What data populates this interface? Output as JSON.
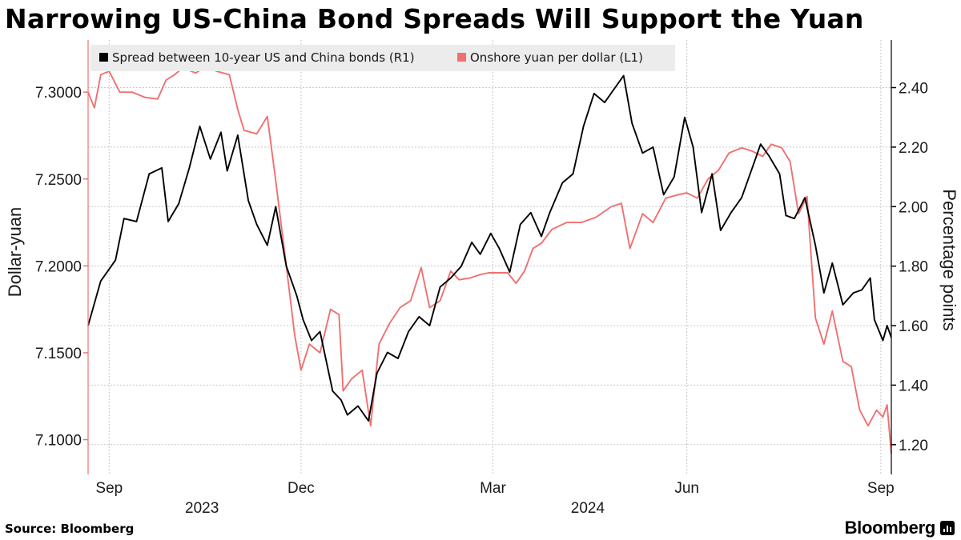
{
  "title": "Narrowing US-China Bond Spreads Will Support the Yuan",
  "source": "Source: Bloomberg",
  "brand": "Bloomberg",
  "brand_icon": "bloomberg-chart-icon",
  "chart_data": {
    "type": "line",
    "left_axis": {
      "label": "Dollar-yuan",
      "min": 7.08,
      "max": 7.33,
      "ticks": [
        "7.1000",
        "7.1500",
        "7.2000",
        "7.2500",
        "7.3000"
      ]
    },
    "right_axis": {
      "label": "Percentage points",
      "min": 1.1,
      "max": 2.56,
      "ticks": [
        "1.20",
        "1.40",
        "1.60",
        "1.80",
        "2.00",
        "2.20",
        "2.40"
      ]
    },
    "x_axis": {
      "start": "2023-08-22",
      "end": "2024-09-06",
      "month_ticks": [
        {
          "label": "Sep",
          "date": "2023-09-01"
        },
        {
          "label": "Dec",
          "date": "2023-12-01"
        },
        {
          "label": "Mar",
          "date": "2024-03-01"
        },
        {
          "label": "Jun",
          "date": "2024-06-01"
        },
        {
          "label": "Sep",
          "date": "2024-09-01"
        }
      ],
      "year_labels": [
        {
          "label": "2023",
          "date": "2023-10-15"
        },
        {
          "label": "2024",
          "date": "2024-04-15"
        }
      ]
    },
    "grid": true,
    "legend_position": "top-left",
    "series": [
      {
        "name": "Spread between 10-year US and China bonds (R1)",
        "axis": "right",
        "color": "#000000",
        "points": [
          [
            "2023-08-22",
            1.6
          ],
          [
            "2023-08-28",
            1.75
          ],
          [
            "2023-09-04",
            1.82
          ],
          [
            "2023-09-08",
            1.96
          ],
          [
            "2023-09-14",
            1.95
          ],
          [
            "2023-09-20",
            2.11
          ],
          [
            "2023-09-26",
            2.13
          ],
          [
            "2023-09-29",
            1.95
          ],
          [
            "2023-10-04",
            2.01
          ],
          [
            "2023-10-09",
            2.13
          ],
          [
            "2023-10-14",
            2.27
          ],
          [
            "2023-10-19",
            2.16
          ],
          [
            "2023-10-24",
            2.25
          ],
          [
            "2023-10-27",
            2.12
          ],
          [
            "2023-11-01",
            2.24
          ],
          [
            "2023-11-06",
            2.02
          ],
          [
            "2023-11-10",
            1.94
          ],
          [
            "2023-11-15",
            1.87
          ],
          [
            "2023-11-19",
            2.0
          ],
          [
            "2023-11-24",
            1.8
          ],
          [
            "2023-11-29",
            1.7
          ],
          [
            "2023-12-02",
            1.62
          ],
          [
            "2023-12-06",
            1.55
          ],
          [
            "2023-12-10",
            1.58
          ],
          [
            "2023-12-16",
            1.38
          ],
          [
            "2023-12-20",
            1.35
          ],
          [
            "2023-12-23",
            1.3
          ],
          [
            "2023-12-28",
            1.33
          ],
          [
            "2024-01-02",
            1.28
          ],
          [
            "2024-01-06",
            1.44
          ],
          [
            "2024-01-11",
            1.51
          ],
          [
            "2024-01-16",
            1.49
          ],
          [
            "2024-01-21",
            1.58
          ],
          [
            "2024-01-26",
            1.63
          ],
          [
            "2024-01-31",
            1.6
          ],
          [
            "2024-02-05",
            1.73
          ],
          [
            "2024-02-10",
            1.76
          ],
          [
            "2024-02-15",
            1.8
          ],
          [
            "2024-02-20",
            1.88
          ],
          [
            "2024-02-24",
            1.84
          ],
          [
            "2024-02-29",
            1.91
          ],
          [
            "2024-03-04",
            1.86
          ],
          [
            "2024-03-09",
            1.78
          ],
          [
            "2024-03-14",
            1.94
          ],
          [
            "2024-03-19",
            1.98
          ],
          [
            "2024-03-24",
            1.9
          ],
          [
            "2024-03-28",
            1.98
          ],
          [
            "2024-04-03",
            2.08
          ],
          [
            "2024-04-08",
            2.11
          ],
          [
            "2024-04-13",
            2.27
          ],
          [
            "2024-04-18",
            2.38
          ],
          [
            "2024-04-23",
            2.35
          ],
          [
            "2024-04-28",
            2.4
          ],
          [
            "2024-05-02",
            2.44
          ],
          [
            "2024-05-06",
            2.28
          ],
          [
            "2024-05-11",
            2.18
          ],
          [
            "2024-05-16",
            2.2
          ],
          [
            "2024-05-21",
            2.04
          ],
          [
            "2024-05-26",
            2.1
          ],
          [
            "2024-05-31",
            2.3
          ],
          [
            "2024-06-04",
            2.2
          ],
          [
            "2024-06-08",
            1.98
          ],
          [
            "2024-06-13",
            2.11
          ],
          [
            "2024-06-17",
            1.92
          ],
          [
            "2024-06-22",
            1.98
          ],
          [
            "2024-06-27",
            2.03
          ],
          [
            "2024-07-02",
            2.13
          ],
          [
            "2024-07-06",
            2.21
          ],
          [
            "2024-07-10",
            2.17
          ],
          [
            "2024-07-15",
            2.11
          ],
          [
            "2024-07-18",
            1.97
          ],
          [
            "2024-07-22",
            1.96
          ],
          [
            "2024-07-27",
            2.03
          ],
          [
            "2024-08-01",
            1.87
          ],
          [
            "2024-08-05",
            1.71
          ],
          [
            "2024-08-09",
            1.81
          ],
          [
            "2024-08-14",
            1.67
          ],
          [
            "2024-08-19",
            1.71
          ],
          [
            "2024-08-23",
            1.72
          ],
          [
            "2024-08-27",
            1.76
          ],
          [
            "2024-08-29",
            1.62
          ],
          [
            "2024-09-02",
            1.55
          ],
          [
            "2024-09-04",
            1.6
          ],
          [
            "2024-09-06",
            1.56
          ]
        ]
      },
      {
        "name": "Onshore yuan per dollar (L1)",
        "axis": "left",
        "color": "#f07070",
        "points": [
          [
            "2023-08-22",
            7.3
          ],
          [
            "2023-08-25",
            7.291
          ],
          [
            "2023-08-28",
            7.31
          ],
          [
            "2023-09-01",
            7.312
          ],
          [
            "2023-09-06",
            7.3
          ],
          [
            "2023-09-12",
            7.3
          ],
          [
            "2023-09-18",
            7.297
          ],
          [
            "2023-09-24",
            7.296
          ],
          [
            "2023-09-28",
            7.307
          ],
          [
            "2023-10-02",
            7.31
          ],
          [
            "2023-10-06",
            7.314
          ],
          [
            "2023-10-12",
            7.311
          ],
          [
            "2023-10-17",
            7.315
          ],
          [
            "2023-10-22",
            7.312
          ],
          [
            "2023-10-28",
            7.31
          ],
          [
            "2023-11-01",
            7.29
          ],
          [
            "2023-11-04",
            7.278
          ],
          [
            "2023-11-10",
            7.276
          ],
          [
            "2023-11-15",
            7.286
          ],
          [
            "2023-11-19",
            7.249
          ],
          [
            "2023-11-24",
            7.2
          ],
          [
            "2023-11-28",
            7.16
          ],
          [
            "2023-12-01",
            7.14
          ],
          [
            "2023-12-05",
            7.155
          ],
          [
            "2023-12-10",
            7.15
          ],
          [
            "2023-12-15",
            7.175
          ],
          [
            "2023-12-19",
            7.172
          ],
          [
            "2023-12-21",
            7.128
          ],
          [
            "2023-12-25",
            7.135
          ],
          [
            "2023-12-30",
            7.14
          ],
          [
            "2024-01-03",
            7.108
          ],
          [
            "2024-01-07",
            7.155
          ],
          [
            "2024-01-12",
            7.167
          ],
          [
            "2024-01-17",
            7.176
          ],
          [
            "2024-01-22",
            7.18
          ],
          [
            "2024-01-27",
            7.199
          ],
          [
            "2024-01-31",
            7.176
          ],
          [
            "2024-02-05",
            7.18
          ],
          [
            "2024-02-10",
            7.197
          ],
          [
            "2024-02-14",
            7.192
          ],
          [
            "2024-02-19",
            7.193
          ],
          [
            "2024-02-24",
            7.195
          ],
          [
            "2024-02-28",
            7.196
          ],
          [
            "2024-03-04",
            7.196
          ],
          [
            "2024-03-08",
            7.196
          ],
          [
            "2024-03-12",
            7.19
          ],
          [
            "2024-03-16",
            7.197
          ],
          [
            "2024-03-20",
            7.21
          ],
          [
            "2024-03-24",
            7.213
          ],
          [
            "2024-03-29",
            7.221
          ],
          [
            "2024-04-05",
            7.225
          ],
          [
            "2024-04-12",
            7.225
          ],
          [
            "2024-04-19",
            7.228
          ],
          [
            "2024-04-26",
            7.234
          ],
          [
            "2024-05-01",
            7.236
          ],
          [
            "2024-05-05",
            7.21
          ],
          [
            "2024-05-11",
            7.23
          ],
          [
            "2024-05-16",
            7.225
          ],
          [
            "2024-05-22",
            7.239
          ],
          [
            "2024-05-28",
            7.241
          ],
          [
            "2024-06-01",
            7.242
          ],
          [
            "2024-06-06",
            7.239
          ],
          [
            "2024-06-11",
            7.25
          ],
          [
            "2024-06-16",
            7.255
          ],
          [
            "2024-06-21",
            7.265
          ],
          [
            "2024-06-27",
            7.268
          ],
          [
            "2024-07-02",
            7.266
          ],
          [
            "2024-07-07",
            7.263
          ],
          [
            "2024-07-11",
            7.27
          ],
          [
            "2024-07-16",
            7.268
          ],
          [
            "2024-07-20",
            7.26
          ],
          [
            "2024-07-24",
            7.23
          ],
          [
            "2024-07-28",
            7.24
          ],
          [
            "2024-08-01",
            7.17
          ],
          [
            "2024-08-05",
            7.155
          ],
          [
            "2024-08-09",
            7.174
          ],
          [
            "2024-08-14",
            7.145
          ],
          [
            "2024-08-18",
            7.142
          ],
          [
            "2024-08-22",
            7.117
          ],
          [
            "2024-08-26",
            7.108
          ],
          [
            "2024-08-30",
            7.117
          ],
          [
            "2024-09-02",
            7.113
          ],
          [
            "2024-09-04",
            7.12
          ],
          [
            "2024-09-06",
            7.092
          ]
        ]
      }
    ]
  }
}
